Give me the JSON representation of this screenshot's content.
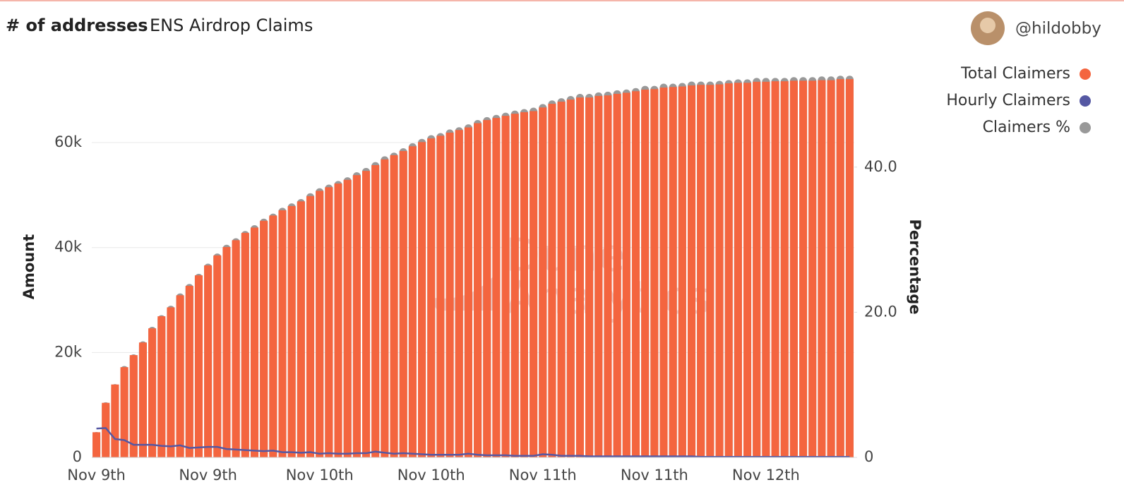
{
  "header": {
    "title": "# of addresses",
    "subtitle": "ENS Airdrop Claims",
    "user": "@hildobby"
  },
  "chart_data": {
    "type": "bar",
    "watermark": [
      "Dune",
      "Analytics"
    ],
    "ylabel": "Amount",
    "y2label": "Percentage",
    "categories": [
      "Nov 9th",
      null,
      null,
      null,
      null,
      null,
      null,
      null,
      null,
      null,
      null,
      null,
      "Nov 9th",
      null,
      null,
      null,
      null,
      null,
      null,
      null,
      null,
      null,
      null,
      null,
      "Nov 10th",
      null,
      null,
      null,
      null,
      null,
      null,
      null,
      null,
      null,
      null,
      null,
      "Nov 10th",
      null,
      null,
      null,
      null,
      null,
      null,
      null,
      null,
      null,
      null,
      null,
      "Nov 11th",
      null,
      null,
      null,
      null,
      null,
      null,
      null,
      null,
      null,
      null,
      null,
      "Nov 11th",
      null,
      null,
      null,
      null,
      null,
      null,
      null,
      null,
      null,
      null,
      null,
      "Nov 12th",
      null,
      null,
      null,
      null,
      null,
      null,
      null,
      null,
      null
    ],
    "series": [
      {
        "name": "Total Claimers",
        "color": "#f4653f",
        "kind": "bar",
        "values": [
          4800,
          10400,
          13900,
          17200,
          19500,
          21900,
          24600,
          26900,
          28600,
          30900,
          32700,
          34700,
          36600,
          38500,
          40100,
          41400,
          42800,
          43800,
          45100,
          46100,
          47100,
          47900,
          48800,
          49800,
          50800,
          51500,
          52200,
          52900,
          53800,
          54600,
          55700,
          56800,
          57600,
          58400,
          59300,
          60100,
          60800,
          61300,
          61900,
          62400,
          62900,
          63700,
          64300,
          64700,
          65100,
          65500,
          65800,
          66000,
          66700,
          67400,
          67800,
          68200,
          68600,
          68600,
          68900,
          69000,
          69300,
          69500,
          69800,
          70100,
          70200,
          70500,
          70600,
          70700,
          70900,
          71000,
          71000,
          71100,
          71300,
          71400,
          71400,
          71600,
          71600,
          71700,
          71700,
          71800,
          71800,
          71800,
          71900,
          71900,
          72100,
          72100
        ]
      },
      {
        "name": "Hourly Claimers",
        "color": "#5558a3",
        "kind": "line",
        "values": [
          5500,
          5600,
          3500,
          3300,
          2400,
          2400,
          2400,
          2200,
          2100,
          2300,
          1800,
          1900,
          2000,
          2000,
          1600,
          1500,
          1400,
          1300,
          1200,
          1300,
          1000,
          1000,
          900,
          1000,
          700,
          800,
          700,
          700,
          800,
          800,
          1100,
          900,
          700,
          800,
          700,
          600,
          500,
          500,
          500,
          500,
          700,
          500,
          400,
          400,
          400,
          300,
          300,
          300,
          600,
          500,
          300,
          300,
          300,
          200,
          200,
          200,
          200,
          200,
          200,
          200,
          200,
          200,
          200,
          200,
          200,
          100,
          100,
          100,
          100,
          100,
          100,
          100,
          100,
          100,
          100,
          100,
          100,
          100,
          100,
          100,
          100,
          100
        ]
      },
      {
        "name": "Claimers %",
        "color": "#999999",
        "kind": "bar",
        "axis": "y2",
        "values": [
          3.5,
          7.6,
          10.1,
          12.6,
          14.2,
          16.0,
          18.0,
          19.6,
          20.9,
          22.6,
          23.9,
          25.3,
          26.7,
          28.1,
          29.3,
          30.2,
          31.2,
          32.0,
          32.9,
          33.6,
          34.4,
          35.0,
          35.6,
          36.4,
          37.1,
          37.6,
          38.1,
          38.6,
          39.3,
          39.9,
          40.7,
          41.5,
          42.0,
          42.6,
          43.3,
          43.9,
          44.4,
          44.7,
          45.2,
          45.5,
          45.9,
          46.5,
          46.9,
          47.2,
          47.5,
          47.8,
          48.0,
          48.2,
          48.7,
          49.2,
          49.5,
          49.8,
          50.1,
          50.1,
          50.3,
          50.4,
          50.6,
          50.7,
          50.9,
          51.2,
          51.2,
          51.5,
          51.5,
          51.6,
          51.8,
          51.8,
          51.8,
          51.9,
          52.0,
          52.1,
          52.1,
          52.3,
          52.3,
          52.3,
          52.3,
          52.4,
          52.4,
          52.4,
          52.5,
          52.5,
          52.6,
          52.6
        ]
      }
    ],
    "ylim": [
      0,
      74000
    ],
    "yticks": [
      0,
      {
        "value": 20000,
        "label": "20k"
      },
      {
        "value": 40000,
        "label": "40k"
      },
      {
        "value": 60000,
        "label": "60k"
      }
    ],
    "y2lim": [
      0,
      53.5
    ],
    "y2ticks": [
      0,
      {
        "value": 20,
        "label": "20.0"
      },
      {
        "value": 40,
        "label": "40.0"
      }
    ],
    "grid": true,
    "legend": "top-right"
  }
}
